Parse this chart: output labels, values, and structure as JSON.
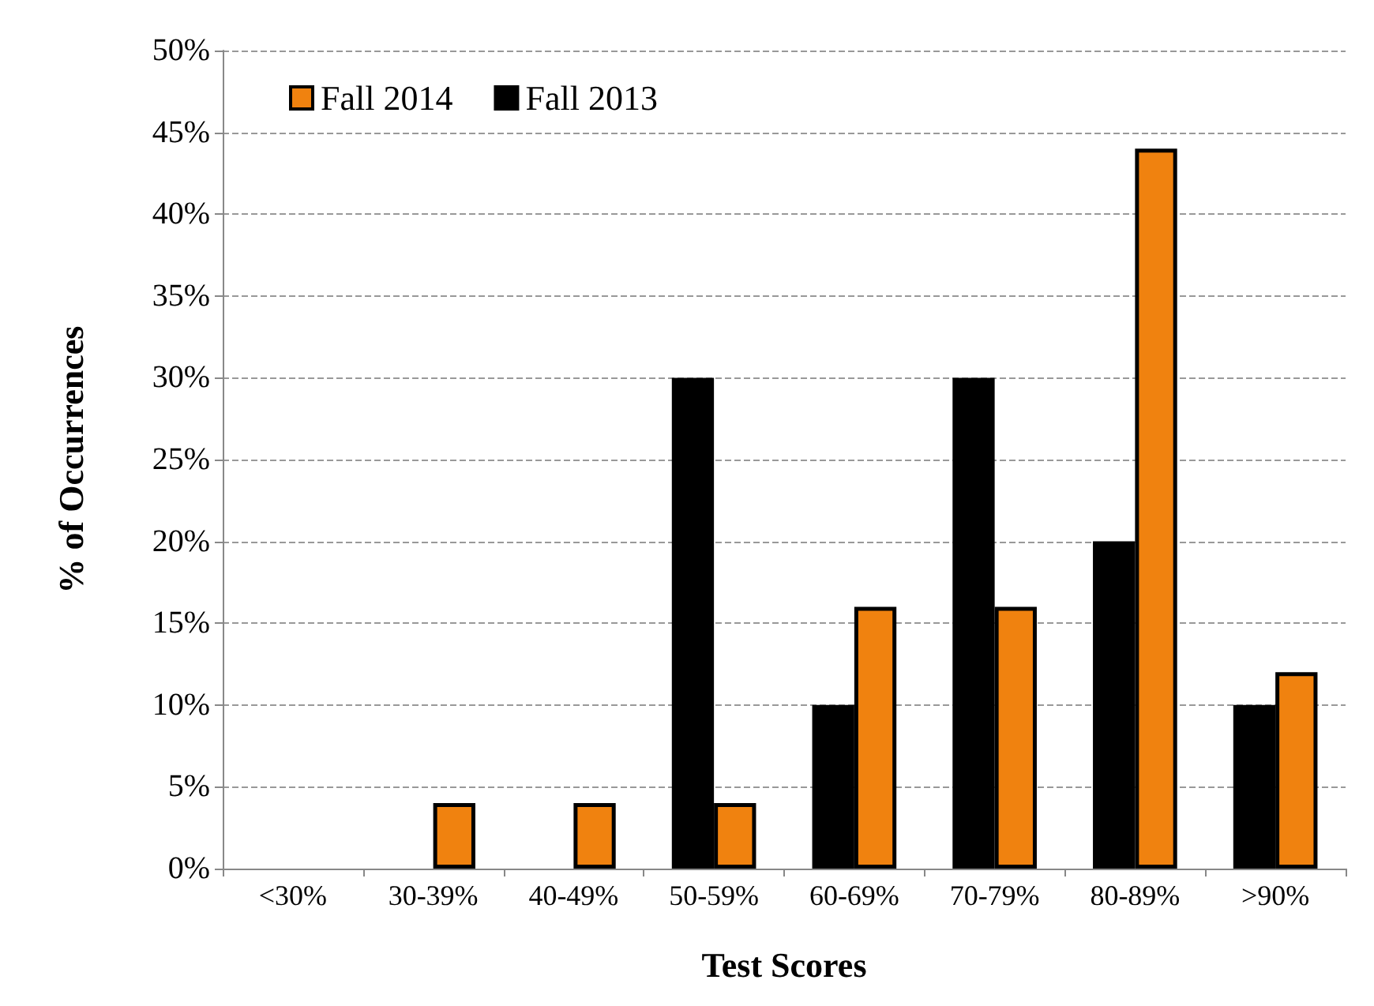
{
  "chart_data": {
    "type": "bar",
    "xlabel": "Test Scores",
    "ylabel": "% of Occurrences",
    "categories": [
      "<30%",
      "30-39%",
      "40-49%",
      "50-59%",
      "60-69%",
      "70-79%",
      "80-89%",
      ">90%"
    ],
    "series": [
      {
        "name": "Fall 2013",
        "color": "#000000",
        "values": [
          0,
          0,
          0,
          30,
          10,
          30,
          20,
          10
        ]
      },
      {
        "name": "Fall 2014",
        "color": "#f0820f",
        "values": [
          0,
          4,
          4,
          4,
          16,
          16,
          44,
          12
        ]
      }
    ],
    "ylim": [
      0,
      50
    ],
    "yticks": [
      {
        "value": 0,
        "label": "0%"
      },
      {
        "value": 5,
        "label": "5%"
      },
      {
        "value": 10,
        "label": "10%"
      },
      {
        "value": 15,
        "label": "15%"
      },
      {
        "value": 20,
        "label": "20%"
      },
      {
        "value": 25,
        "label": "25%"
      },
      {
        "value": 30,
        "label": "30%"
      },
      {
        "value": 35,
        "label": "35%"
      },
      {
        "value": 40,
        "label": "40%"
      },
      {
        "value": 45,
        "label": "45%"
      },
      {
        "value": 50,
        "label": "50%"
      }
    ],
    "grid": "y",
    "legend": "top left"
  }
}
